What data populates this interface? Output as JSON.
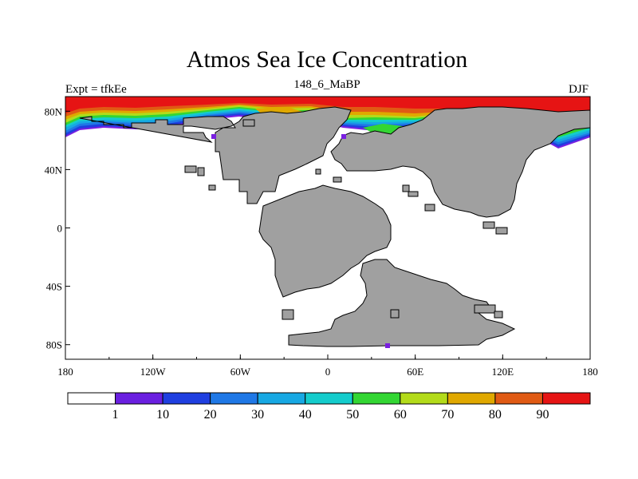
{
  "title": "Atmos Sea Ice Concentration",
  "left_label": "Expt = tfkEe",
  "center_label": "148_6_MaBP",
  "right_label": "DJF",
  "map": {
    "lon_range": [
      -180,
      180
    ],
    "lat_range": [
      -90,
      90
    ],
    "x_ticks": [
      {
        "value": -180,
        "label": "180"
      },
      {
        "value": -120,
        "label": "120W"
      },
      {
        "value": -60,
        "label": "60W"
      },
      {
        "value": 0,
        "label": "0"
      },
      {
        "value": 60,
        "label": "60E"
      },
      {
        "value": 120,
        "label": "120E"
      },
      {
        "value": 180,
        "label": "180"
      }
    ],
    "y_ticks": [
      {
        "value": 80,
        "label": "80N"
      },
      {
        "value": 40,
        "label": "40N"
      },
      {
        "value": 0,
        "label": "0"
      },
      {
        "value": -40,
        "label": "40S"
      },
      {
        "value": -80,
        "label": "80S"
      }
    ],
    "land_color": "#a0a0a0",
    "ice_band_colors": [
      "#7a1fe0",
      "#1f3fe0",
      "#1f78e6",
      "#17a8e3",
      "#14cccc",
      "#33d633",
      "#b3db1a",
      "#e0a800",
      "#e05a14",
      "#e61414"
    ]
  },
  "colorbar": {
    "colors": [
      "#ffffff",
      "#6a1fe0",
      "#1f3fe0",
      "#1f78e6",
      "#17a8e3",
      "#14cccc",
      "#33d633",
      "#b3db1a",
      "#e0a800",
      "#e05a14",
      "#e61414"
    ],
    "labels": [
      "1",
      "10",
      "20",
      "30",
      "40",
      "50",
      "60",
      "70",
      "80",
      "90"
    ]
  }
}
